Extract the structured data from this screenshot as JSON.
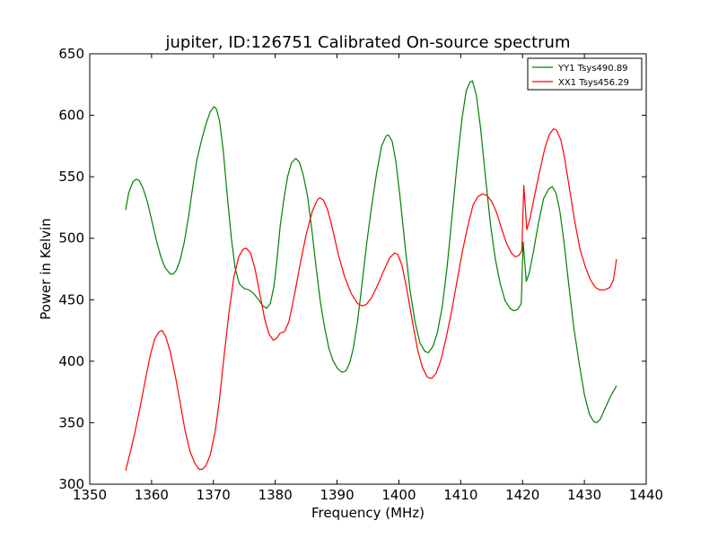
{
  "chart_data": {
    "type": "line",
    "title": "jupiter, ID:126751 Calibrated On-source spectrum",
    "xlabel": "Frequency (MHz)",
    "ylabel": "Power in Kelvin",
    "xlim": [
      1350,
      1440
    ],
    "ylim": [
      300,
      650
    ],
    "xticks": [
      1350,
      1360,
      1370,
      1380,
      1390,
      1400,
      1410,
      1420,
      1430,
      1440
    ],
    "yticks": [
      300,
      350,
      400,
      450,
      500,
      550,
      600,
      650
    ],
    "grid": false,
    "legend_position": "top-right",
    "series": [
      {
        "name": "YY1 Tsys490.89",
        "color": "#008000",
        "points": [
          [
            1355.8,
            523
          ],
          [
            1356.3,
            537
          ],
          [
            1357.0,
            546
          ],
          [
            1357.5,
            548
          ],
          [
            1358.0,
            547
          ],
          [
            1358.6,
            541
          ],
          [
            1359.3,
            530
          ],
          [
            1360.0,
            515
          ],
          [
            1360.8,
            498
          ],
          [
            1361.5,
            485
          ],
          [
            1362.2,
            476
          ],
          [
            1363.0,
            471
          ],
          [
            1363.5,
            471
          ],
          [
            1364.0,
            474
          ],
          [
            1364.6,
            482
          ],
          [
            1365.3,
            497
          ],
          [
            1366.0,
            518
          ],
          [
            1366.7,
            543
          ],
          [
            1367.3,
            563
          ],
          [
            1368.0,
            578
          ],
          [
            1368.8,
            593
          ],
          [
            1369.5,
            603
          ],
          [
            1370.1,
            607
          ],
          [
            1370.5,
            605
          ],
          [
            1371.0,
            595
          ],
          [
            1371.6,
            571
          ],
          [
            1372.2,
            537
          ],
          [
            1372.9,
            500
          ],
          [
            1373.5,
            476
          ],
          [
            1374.2,
            463
          ],
          [
            1375.0,
            459
          ],
          [
            1375.8,
            458
          ],
          [
            1376.5,
            455
          ],
          [
            1377.3,
            450
          ],
          [
            1378.0,
            445
          ],
          [
            1378.6,
            443
          ],
          [
            1379.2,
            447
          ],
          [
            1379.8,
            461
          ],
          [
            1380.3,
            483
          ],
          [
            1380.8,
            510
          ],
          [
            1381.4,
            532
          ],
          [
            1382.0,
            550
          ],
          [
            1382.6,
            561
          ],
          [
            1383.3,
            565
          ],
          [
            1383.9,
            562
          ],
          [
            1384.5,
            552
          ],
          [
            1385.2,
            535
          ],
          [
            1385.9,
            508
          ],
          [
            1386.6,
            477
          ],
          [
            1387.3,
            448
          ],
          [
            1388.0,
            427
          ],
          [
            1388.7,
            410
          ],
          [
            1389.4,
            400
          ],
          [
            1390.1,
            394
          ],
          [
            1390.8,
            391
          ],
          [
            1391.4,
            392
          ],
          [
            1392.0,
            398
          ],
          [
            1392.6,
            410
          ],
          [
            1393.3,
            432
          ],
          [
            1394.0,
            461
          ],
          [
            1394.8,
            496
          ],
          [
            1395.6,
            526
          ],
          [
            1396.4,
            553
          ],
          [
            1397.2,
            575
          ],
          [
            1397.9,
            583
          ],
          [
            1398.3,
            584
          ],
          [
            1398.9,
            579
          ],
          [
            1399.5,
            563
          ],
          [
            1400.2,
            533
          ],
          [
            1401.0,
            494
          ],
          [
            1401.8,
            458
          ],
          [
            1402.6,
            432
          ],
          [
            1403.4,
            415
          ],
          [
            1404.2,
            408
          ],
          [
            1404.8,
            407
          ],
          [
            1405.5,
            412
          ],
          [
            1406.2,
            423
          ],
          [
            1407.0,
            444
          ],
          [
            1407.8,
            477
          ],
          [
            1408.6,
            518
          ],
          [
            1409.4,
            560
          ],
          [
            1410.2,
            597
          ],
          [
            1410.9,
            620
          ],
          [
            1411.5,
            627
          ],
          [
            1411.9,
            628
          ],
          [
            1412.5,
            617
          ],
          [
            1413.2,
            590
          ],
          [
            1414.0,
            550
          ],
          [
            1414.8,
            512
          ],
          [
            1415.6,
            483
          ],
          [
            1416.4,
            463
          ],
          [
            1417.2,
            449
          ],
          [
            1418.0,
            443
          ],
          [
            1418.6,
            441
          ],
          [
            1419.2,
            442
          ],
          [
            1419.8,
            447
          ],
          [
            1420.1,
            497
          ],
          [
            1420.6,
            465
          ],
          [
            1421.1,
            472
          ],
          [
            1421.8,
            490
          ],
          [
            1422.6,
            513
          ],
          [
            1423.4,
            532
          ],
          [
            1424.2,
            540
          ],
          [
            1424.8,
            542
          ],
          [
            1425.4,
            537
          ],
          [
            1426.0,
            523
          ],
          [
            1426.7,
            497
          ],
          [
            1427.5,
            461
          ],
          [
            1428.3,
            427
          ],
          [
            1429.2,
            397
          ],
          [
            1430.0,
            373
          ],
          [
            1430.8,
            357
          ],
          [
            1431.5,
            351
          ],
          [
            1432.0,
            350
          ],
          [
            1432.6,
            353
          ],
          [
            1433.3,
            361
          ],
          [
            1434.2,
            371
          ],
          [
            1435.2,
            380
          ]
        ]
      },
      {
        "name": "XX1 Tsys456.29",
        "color": "#ff0000",
        "points": [
          [
            1355.8,
            311
          ],
          [
            1356.5,
            325
          ],
          [
            1357.3,
            342
          ],
          [
            1358.2,
            364
          ],
          [
            1359.0,
            385
          ],
          [
            1359.8,
            405
          ],
          [
            1360.5,
            418
          ],
          [
            1361.2,
            424
          ],
          [
            1361.7,
            425
          ],
          [
            1362.3,
            420
          ],
          [
            1363.0,
            408
          ],
          [
            1363.8,
            389
          ],
          [
            1364.6,
            367
          ],
          [
            1365.4,
            344
          ],
          [
            1366.2,
            327
          ],
          [
            1367.0,
            317
          ],
          [
            1367.7,
            312
          ],
          [
            1368.2,
            312
          ],
          [
            1368.8,
            315
          ],
          [
            1369.5,
            324
          ],
          [
            1370.3,
            343
          ],
          [
            1371.0,
            370
          ],
          [
            1371.7,
            403
          ],
          [
            1372.5,
            439
          ],
          [
            1373.3,
            468
          ],
          [
            1374.1,
            485
          ],
          [
            1374.8,
            491
          ],
          [
            1375.3,
            492
          ],
          [
            1376.0,
            488
          ],
          [
            1376.7,
            476
          ],
          [
            1377.5,
            455
          ],
          [
            1378.3,
            434
          ],
          [
            1379.0,
            422
          ],
          [
            1379.7,
            417
          ],
          [
            1380.3,
            419
          ],
          [
            1380.8,
            423
          ],
          [
            1381.5,
            424
          ],
          [
            1382.2,
            432
          ],
          [
            1383.0,
            451
          ],
          [
            1384.0,
            478
          ],
          [
            1385.0,
            503
          ],
          [
            1386.0,
            522
          ],
          [
            1386.8,
            531
          ],
          [
            1387.2,
            533
          ],
          [
            1387.8,
            531
          ],
          [
            1388.5,
            523
          ],
          [
            1389.3,
            507
          ],
          [
            1390.2,
            487
          ],
          [
            1391.2,
            469
          ],
          [
            1392.3,
            455
          ],
          [
            1393.3,
            447
          ],
          [
            1394.0,
            445
          ],
          [
            1394.7,
            446
          ],
          [
            1395.5,
            451
          ],
          [
            1396.5,
            461
          ],
          [
            1397.5,
            473
          ],
          [
            1398.5,
            484
          ],
          [
            1399.3,
            488
          ],
          [
            1399.8,
            487
          ],
          [
            1400.5,
            478
          ],
          [
            1401.3,
            458
          ],
          [
            1402.2,
            432
          ],
          [
            1403.0,
            410
          ],
          [
            1403.8,
            395
          ],
          [
            1404.6,
            387
          ],
          [
            1405.3,
            386
          ],
          [
            1406.0,
            390
          ],
          [
            1406.8,
            401
          ],
          [
            1407.6,
            418
          ],
          [
            1408.5,
            440
          ],
          [
            1409.4,
            465
          ],
          [
            1410.3,
            490
          ],
          [
            1411.2,
            511
          ],
          [
            1412.0,
            527
          ],
          [
            1412.8,
            534
          ],
          [
            1413.5,
            536
          ],
          [
            1414.2,
            535
          ],
          [
            1415.0,
            530
          ],
          [
            1415.8,
            521
          ],
          [
            1416.6,
            508
          ],
          [
            1417.4,
            496
          ],
          [
            1418.2,
            488
          ],
          [
            1418.8,
            485
          ],
          [
            1419.4,
            486
          ],
          [
            1419.9,
            490
          ],
          [
            1420.2,
            543
          ],
          [
            1420.7,
            507
          ],
          [
            1421.2,
            516
          ],
          [
            1422.0,
            536
          ],
          [
            1422.8,
            555
          ],
          [
            1423.6,
            573
          ],
          [
            1424.4,
            585
          ],
          [
            1425.0,
            589
          ],
          [
            1425.5,
            588
          ],
          [
            1426.2,
            580
          ],
          [
            1426.8,
            565
          ],
          [
            1427.6,
            540
          ],
          [
            1428.5,
            512
          ],
          [
            1429.3,
            491
          ],
          [
            1430.2,
            476
          ],
          [
            1431.0,
            466
          ],
          [
            1431.8,
            460
          ],
          [
            1432.5,
            458
          ],
          [
            1433.3,
            458
          ],
          [
            1434.1,
            460
          ],
          [
            1434.7,
            466
          ],
          [
            1435.2,
            483
          ]
        ]
      }
    ]
  }
}
